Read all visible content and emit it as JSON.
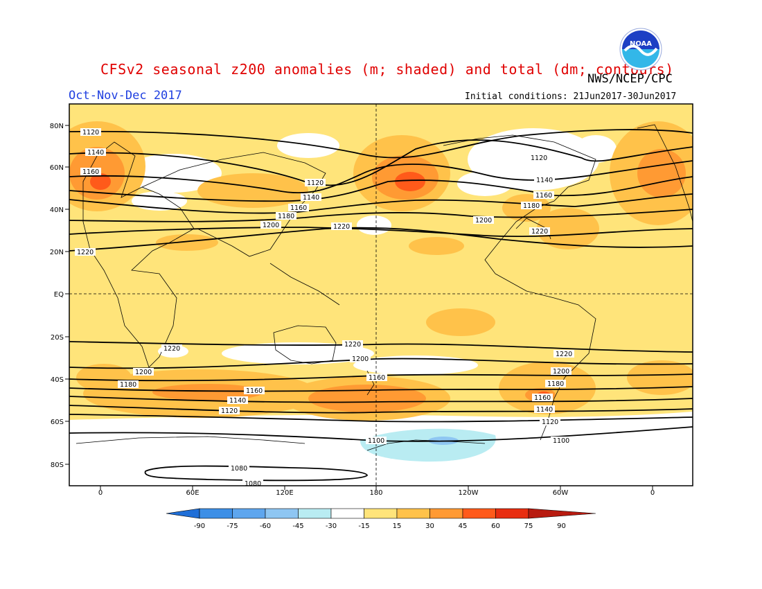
{
  "header": {
    "title": "CFSv2 seasonal z200 anomalies (m; shaded) and total (dm; contours)",
    "agency": "NWS/NCEP/CPC",
    "season": "Oct-Nov-Dec 2017",
    "initial_conditions": "Initial conditions: 21Jun2017-30Jun2017"
  },
  "logo": {
    "text": "NOAA",
    "icon": "noaa-logo"
  },
  "axes": {
    "lat_labels": [
      "80N",
      "60N",
      "40N",
      "20N",
      "EQ",
      "20S",
      "40S",
      "60S",
      "80S"
    ],
    "lon_labels": [
      "0",
      "60E",
      "120E",
      "180",
      "120W",
      "60W",
      "0"
    ]
  },
  "colorbar": {
    "labels": [
      "-90",
      "-75",
      "-60",
      "-45",
      "-30",
      "-15",
      "15",
      "30",
      "45",
      "60",
      "75",
      "90"
    ],
    "colors": [
      "#1f6fd8",
      "#3d8fe6",
      "#5ea6ee",
      "#8ec6f2",
      "#b9ecf2",
      "#ffffff",
      "#ffe47a",
      "#ffc24a",
      "#ff9a33",
      "#ff5a1a",
      "#e82d10",
      "#b81b10"
    ]
  },
  "contour_labels": [
    "1120",
    "1140",
    "1160",
    "1180",
    "1200",
    "1220",
    "1120",
    "1140",
    "1160",
    "1180",
    "1200",
    "1220",
    "1220",
    "1200",
    "1180",
    "1160",
    "1140",
    "1120",
    "1100",
    "1080"
  ]
}
